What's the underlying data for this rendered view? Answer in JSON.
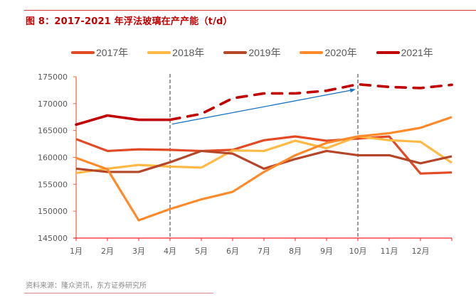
{
  "title": "图 8：2017-2021 年浮法玻璃在产产能（t/d）",
  "source": "资料来源：隆众资讯，东方证券研究所",
  "chart_data": {
    "type": "line",
    "title": "2017-2021 年浮法玻璃在产产能（t/d）",
    "xlabel": "",
    "ylabel": "",
    "categories": [
      "1月",
      "2月",
      "3月",
      "4月",
      "5月",
      "6月",
      "7月",
      "8月",
      "9月",
      "10月",
      "11月",
      "12月",
      ""
    ],
    "ylim": [
      145000,
      175000
    ],
    "yticks": [
      145000,
      150000,
      155000,
      160000,
      165000,
      170000,
      175000
    ],
    "ytick_labels": [
      "145000",
      "150000",
      "155000",
      "160000",
      "165000",
      "170000",
      "175000"
    ],
    "grid": false,
    "legend_position": "top",
    "series": [
      {
        "name": "2017年",
        "color": "#e24a26",
        "style": "solid",
        "values": [
          163400,
          161200,
          161500,
          161400,
          161200,
          161400,
          163200,
          163900,
          163100,
          163500,
          163900,
          157000,
          157200
        ]
      },
      {
        "name": "2018年",
        "color": "#ffb945",
        "style": "solid",
        "values": [
          157100,
          157900,
          158600,
          158300,
          158100,
          161300,
          161200,
          163100,
          161700,
          163900,
          163200,
          162900,
          159000
        ]
      },
      {
        "name": "2019年",
        "color": "#b5462a",
        "style": "solid",
        "values": [
          157900,
          157300,
          157300,
          159100,
          161200,
          160700,
          157900,
          159700,
          161200,
          160400,
          160400,
          158900,
          160200
        ]
      },
      {
        "name": "2020年",
        "color": "#ff8a2b",
        "style": "solid",
        "values": [
          159900,
          157800,
          148300,
          150400,
          152200,
          153600,
          157300,
          160400,
          162700,
          163900,
          164500,
          165500,
          167500
        ]
      },
      {
        "name": "2021年",
        "color": "#c00000",
        "style": "solid-then-dashed",
        "dashed_from_index": 3,
        "values": [
          166100,
          167800,
          167000,
          167000,
          168100,
          171000,
          171900,
          171900,
          172400,
          173600,
          173100,
          172900,
          173500
        ]
      }
    ],
    "annotations": [
      {
        "type": "vertical-dashed-line",
        "at_category": "4月",
        "color": "#333333"
      },
      {
        "type": "vertical-dashed-line",
        "at_category": "10月",
        "color": "#333333"
      },
      {
        "type": "arrow",
        "from_category": "4月",
        "from_value": 166200,
        "to_category": "10月",
        "to_value": 172600,
        "color": "#1a73c4"
      }
    ],
    "axis_color": "#ff2020"
  }
}
